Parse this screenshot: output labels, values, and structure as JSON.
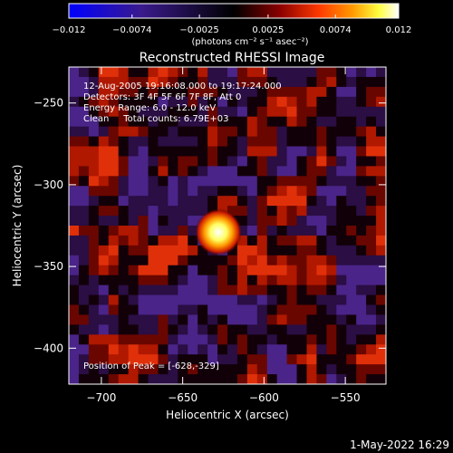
{
  "chart_data": {
    "type": "heatmap",
    "title": "Reconstructed RHESSI Image",
    "xlabel": "Heliocentric X (arcsec)",
    "ylabel": "Heliocentric Y (arcsec)",
    "xlim": [
      -720,
      -525
    ],
    "ylim": [
      -422,
      -228
    ],
    "x_ticks": [
      -700,
      -650,
      -600,
      -550
    ],
    "x_tick_labels": [
      "−700",
      "−650",
      "−600",
      "−550"
    ],
    "y_ticks": [
      -250,
      -300,
      -350,
      -400
    ],
    "y_tick_labels": [
      "−250",
      "−300",
      "−350",
      "−400"
    ],
    "colorbar": {
      "range": [
        -0.012,
        0.012
      ],
      "ticks": [
        -0.012,
        -0.0074,
        -0.0025,
        0.0025,
        0.0074,
        0.012
      ],
      "tick_labels": [
        "−0.012",
        "−0.0074",
        "−0.0025",
        "0.0025",
        "0.0074",
        "0.012"
      ],
      "units": "(photons cm⁻² s⁻¹ asec⁻²)",
      "colors": [
        "#0000ff",
        "#3a1a8c",
        "#000000",
        "#8a0000",
        "#ff3a00",
        "#ff9a00",
        "#ffff40",
        "#ffffff"
      ]
    },
    "annotations": [
      "12-Aug-2005 19:16:08.000 to 19:17:24.000",
      "Detectors: 3F 4F 5F 6F 7F 8F, Att 0",
      "Energy Range: 6.0 - 12.0 keV",
      "Clean     Total counts: 6.79E+03"
    ],
    "peak": {
      "label": "Position of Peak = [-628,-329]",
      "x": -628,
      "y": -329
    }
  },
  "footer": {
    "date": "1-May-2022 16:29"
  }
}
